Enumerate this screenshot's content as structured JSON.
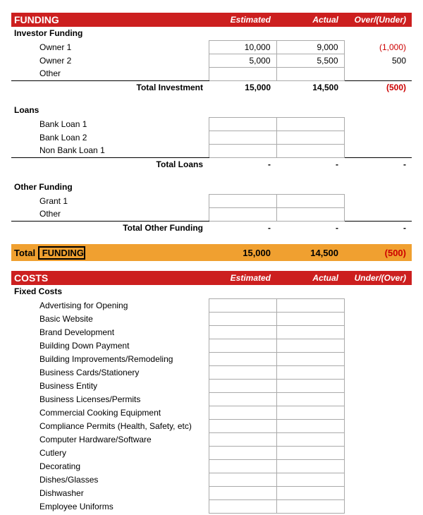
{
  "colors": {
    "header_bg": "#cc1f1f",
    "header_text": "#ffffff",
    "total_bg": "#f0a030",
    "negative": "#cc0000",
    "border": "#000000",
    "cell_border": "#aaaaaa"
  },
  "funding": {
    "header": {
      "title": "FUNDING",
      "est": "Estimated",
      "act": "Actual",
      "diff": "Over/(Under)"
    },
    "investor": {
      "title": "Investor Funding",
      "rows": [
        {
          "label": "Owner 1",
          "est": "10,000",
          "act": "9,000",
          "diff": "(1,000)",
          "neg": true
        },
        {
          "label": "Owner 2",
          "est": "5,000",
          "act": "5,500",
          "diff": "500",
          "neg": false
        },
        {
          "label": "Other",
          "est": "",
          "act": "",
          "diff": "",
          "neg": false
        }
      ],
      "subtotal": {
        "label": "Total Investment",
        "est": "15,000",
        "act": "14,500",
        "diff": "(500)",
        "neg": true
      }
    },
    "loans": {
      "title": "Loans",
      "rows": [
        {
          "label": "Bank Loan 1"
        },
        {
          "label": "Bank Loan 2"
        },
        {
          "label": "Non Bank Loan 1"
        }
      ],
      "subtotal": {
        "label": "Total Loans",
        "est": "-",
        "act": "-",
        "diff": "-"
      }
    },
    "other": {
      "title": "Other Funding",
      "rows": [
        {
          "label": "Grant 1"
        },
        {
          "label": "Other"
        }
      ],
      "subtotal": {
        "label": "Total Other Funding",
        "est": "-",
        "act": "-",
        "diff": "-"
      }
    },
    "total": {
      "prefix": "Total",
      "label": "FUNDING",
      "est": "15,000",
      "act": "14,500",
      "diff": "(500)",
      "neg": true
    }
  },
  "costs": {
    "header": {
      "title": "COSTS",
      "est": "Estimated",
      "act": "Actual",
      "diff": "Under/(Over)"
    },
    "fixed": {
      "title": "Fixed Costs",
      "rows": [
        {
          "label": "Advertising for Opening"
        },
        {
          "label": "Basic Website"
        },
        {
          "label": "Brand Development"
        },
        {
          "label": "Building Down Payment"
        },
        {
          "label": "Building Improvements/Remodeling"
        },
        {
          "label": "Business Cards/Stationery"
        },
        {
          "label": "Business Entity"
        },
        {
          "label": "Business Licenses/Permits"
        },
        {
          "label": "Commercial Cooking Equipment"
        },
        {
          "label": "Compliance Permits (Health, Safety, etc)"
        },
        {
          "label": "Computer Hardware/Software"
        },
        {
          "label": "Cutlery"
        },
        {
          "label": "Decorating"
        },
        {
          "label": "Dishes/Glasses"
        },
        {
          "label": "Dishwasher"
        },
        {
          "label": "Employee Uniforms"
        }
      ]
    }
  }
}
